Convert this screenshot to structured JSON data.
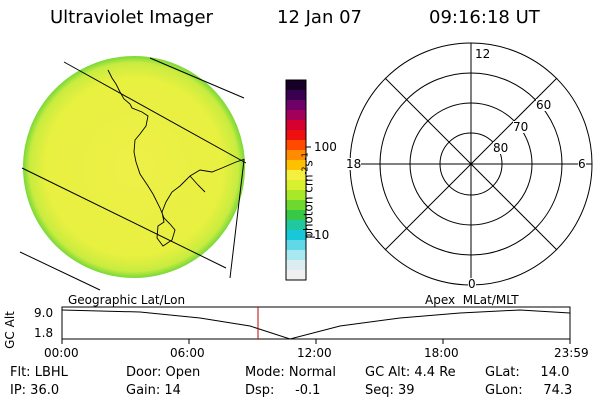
{
  "header": {
    "title": "Ultraviolet Imager",
    "date": "12 Jan 07",
    "time": "09:16:18 UT"
  },
  "colorbar": {
    "label_main": "photon cm",
    "label_exp1": "-2",
    "label_mid": "s",
    "label_exp2": "-1",
    "tick_100": "100",
    "tick_10": "10",
    "bands": [
      "#160025",
      "#3a0050",
      "#6e0068",
      "#a3005a",
      "#d50030",
      "#ee1010",
      "#ff4a00",
      "#ff8c00",
      "#ffc000",
      "#f5f040",
      "#d8f030",
      "#a8e828",
      "#6ed830",
      "#38c848",
      "#20c8a0",
      "#18c8d8",
      "#60d8e8",
      "#a8e8f0",
      "#dcecf0",
      "#f0f0f0"
    ]
  },
  "polar": {
    "mlt_12": "12",
    "mlt_18": "18",
    "mlt_6": "6",
    "mlt_0": "0",
    "lat_60": "60",
    "lat_70": "70",
    "lat_80": "80"
  },
  "track": {
    "left_label": "Geographic Lat/Lon",
    "right_label": "Apex  MLat/MLT",
    "yaxis_label": "GC Alt",
    "ytick_top": "9.0",
    "ytick_bottom": "1.8",
    "xticks": [
      "00:00",
      "06:00",
      "12:00",
      "18:00",
      "23:59"
    ],
    "marker_color": "#c00000"
  },
  "info": {
    "filter": "Flt: LBHL",
    "ip": "IP: 36.0",
    "door": "Door: Open",
    "gain": "Gain: 14",
    "mode": "Mode: Normal",
    "dsp": "Dsp:     -0.1",
    "gc_alt": "GC Alt: 4.4 Re",
    "seq": "Seq: 39",
    "glat": "GLat:     14.0",
    "glon": "GLon:     74.3"
  }
}
